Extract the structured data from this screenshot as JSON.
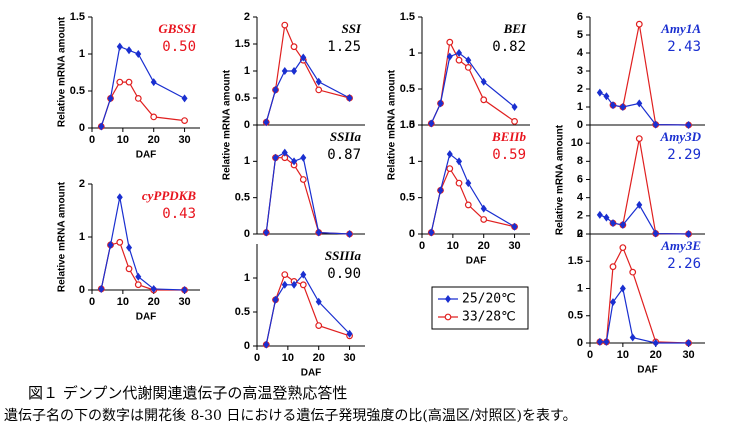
{
  "chart_data": [
    {
      "type": "line",
      "title": "GBSSI",
      "title_color": "#e8141e",
      "ratio": "0.50",
      "ylabel": "Relative mRNA amount",
      "xlabel": "DAF",
      "xlim": [
        0,
        35
      ],
      "xticks": [
        0,
        10,
        20,
        30
      ],
      "ylim": [
        0,
        1.5
      ],
      "yticks": [
        0,
        0.5,
        1,
        1.5
      ],
      "x": [
        3,
        6,
        9,
        12,
        15,
        20,
        30
      ],
      "series": [
        {
          "color": "#1a2fd0",
          "values": [
            0.02,
            0.4,
            1.1,
            1.05,
            1.0,
            0.62,
            0.4
          ]
        },
        {
          "color": "#e02020",
          "values": [
            0.02,
            0.4,
            0.62,
            0.62,
            0.4,
            0.15,
            0.1
          ]
        }
      ]
    },
    {
      "type": "line",
      "title": "cyPPDKB",
      "title_color": "#e8141e",
      "ratio": "0.43",
      "ylabel": "Relative mRNA amount",
      "xlabel": "DAF",
      "xlim": [
        0,
        35
      ],
      "xticks": [
        0,
        10,
        20,
        30
      ],
      "ylim": [
        0,
        2
      ],
      "yticks": [
        0,
        1,
        2
      ],
      "x": [
        3,
        6,
        9,
        12,
        15,
        20,
        30
      ],
      "series": [
        {
          "color": "#1a2fd0",
          "values": [
            0.02,
            0.85,
            1.75,
            0.8,
            0.25,
            0.02,
            0
          ]
        },
        {
          "color": "#e02020",
          "values": [
            0.02,
            0.85,
            0.9,
            0.4,
            0.1,
            0,
            0
          ]
        }
      ]
    },
    {
      "type": "line",
      "title": "SSI",
      "title_color": "#000000",
      "ratio": "1.25",
      "ylabel": "Relative mRNA amount",
      "xlim": [
        0,
        35
      ],
      "ylim": [
        0,
        2
      ],
      "yticks": [
        0,
        0.5,
        1,
        1.5,
        2
      ],
      "x": [
        3,
        6,
        9,
        12,
        15,
        20,
        30
      ],
      "series": [
        {
          "color": "#1a2fd0",
          "values": [
            0.05,
            0.65,
            1.0,
            1.0,
            1.25,
            0.8,
            0.5
          ]
        },
        {
          "color": "#e02020",
          "values": [
            0.05,
            0.65,
            1.85,
            1.45,
            1.2,
            0.65,
            0.5
          ]
        }
      ]
    },
    {
      "type": "line",
      "title": "SSIIa",
      "title_color": "#000000",
      "ratio": "0.87",
      "xlim": [
        0,
        35
      ],
      "ylim": [
        0,
        1.5
      ],
      "yticks": [
        0,
        0.5,
        1
      ],
      "x": [
        3,
        6,
        9,
        12,
        15,
        20,
        30
      ],
      "series": [
        {
          "color": "#1a2fd0",
          "values": [
            0.02,
            1.05,
            1.12,
            1.0,
            1.05,
            0.02,
            0
          ]
        },
        {
          "color": "#e02020",
          "values": [
            0.02,
            1.05,
            1.05,
            0.95,
            0.75,
            0.02,
            0
          ]
        }
      ]
    },
    {
      "type": "line",
      "title": "SSIIIa",
      "title_color": "#000000",
      "ratio": "0.90",
      "xlabel": "DAF",
      "xlim": [
        0,
        35
      ],
      "xticks": [
        0,
        10,
        20,
        30
      ],
      "ylim": [
        0,
        1.5
      ],
      "yticks": [
        0,
        0.5,
        1
      ],
      "x": [
        3,
        6,
        9,
        12,
        15,
        20,
        30
      ],
      "series": [
        {
          "color": "#1a2fd0",
          "values": [
            0.02,
            0.68,
            0.9,
            0.9,
            1.05,
            0.65,
            0.18
          ]
        },
        {
          "color": "#e02020",
          "values": [
            0.02,
            0.68,
            1.05,
            0.95,
            0.9,
            0.3,
            0.15
          ]
        }
      ]
    },
    {
      "type": "line",
      "title": "BEI",
      "title_color": "#000000",
      "ratio": "0.82",
      "xlim": [
        0,
        35
      ],
      "ylim": [
        0,
        1.5
      ],
      "yticks": [
        0,
        0.5,
        1,
        1.5
      ],
      "x": [
        3,
        6,
        9,
        12,
        15,
        20,
        30
      ],
      "series": [
        {
          "color": "#1a2fd0",
          "values": [
            0.02,
            0.3,
            0.95,
            1.0,
            0.9,
            0.6,
            0.25
          ]
        },
        {
          "color": "#e02020",
          "values": [
            0.02,
            0.3,
            1.15,
            0.9,
            0.8,
            0.35,
            0.05
          ]
        }
      ]
    },
    {
      "type": "line",
      "title": "BEIIb",
      "title_color": "#e8141e",
      "ratio": "0.59",
      "ylabel": "Relative mRNA amount",
      "xlabel": "DAF",
      "xlim": [
        0,
        35
      ],
      "xticks": [
        0,
        10,
        20,
        30
      ],
      "ylim": [
        0,
        1.5
      ],
      "yticks": [
        0,
        0.5,
        1,
        1.5
      ],
      "x": [
        3,
        6,
        9,
        12,
        15,
        20,
        30
      ],
      "series": [
        {
          "color": "#1a2fd0",
          "values": [
            0.02,
            0.6,
            1.1,
            1.0,
            0.7,
            0.35,
            0.1
          ]
        },
        {
          "color": "#e02020",
          "values": [
            0.02,
            0.6,
            0.9,
            0.7,
            0.4,
            0.2,
            0.1
          ]
        }
      ]
    },
    {
      "type": "line",
      "title": "Amy1A",
      "title_color": "#1a2fd0",
      "ratio": "2.43",
      "xlim": [
        0,
        35
      ],
      "ylim": [
        0,
        6
      ],
      "yticks": [
        0,
        1,
        2,
        3,
        4,
        5,
        6
      ],
      "x": [
        3,
        5,
        7,
        10,
        15,
        20,
        30
      ],
      "series": [
        {
          "color": "#1a2fd0",
          "values": [
            1.8,
            1.6,
            1.1,
            1.0,
            1.2,
            0.02,
            0
          ]
        },
        {
          "color": "#e02020",
          "values": [
            null,
            null,
            1.1,
            1.0,
            5.6,
            0.02,
            0
          ]
        }
      ]
    },
    {
      "type": "line",
      "title": "Amy3D",
      "title_color": "#1a2fd0",
      "ratio": "2.29",
      "ylabel": "Relative mRNA amount",
      "xlim": [
        0,
        35
      ],
      "ylim": [
        0,
        12
      ],
      "yticks": [
        0,
        2,
        4,
        6,
        8,
        10
      ],
      "x": [
        3,
        5,
        7,
        10,
        15,
        20,
        30
      ],
      "series": [
        {
          "color": "#1a2fd0",
          "values": [
            2.1,
            1.8,
            1.2,
            1.0,
            3.2,
            0.05,
            0
          ]
        },
        {
          "color": "#e02020",
          "values": [
            null,
            null,
            1.2,
            1.0,
            10.5,
            0.05,
            0
          ]
        }
      ]
    },
    {
      "type": "line",
      "title": "Amy3E",
      "title_color": "#1a2fd0",
      "ratio": "2.26",
      "xlabel": "DAF",
      "xlim": [
        0,
        35
      ],
      "xticks": [
        0,
        10,
        20,
        30
      ],
      "ylim": [
        0,
        2
      ],
      "yticks": [
        0,
        0.5,
        1,
        1.5,
        2
      ],
      "x": [
        3,
        5,
        7,
        10,
        13,
        20,
        30
      ],
      "series": [
        {
          "color": "#1a2fd0",
          "values": [
            0.02,
            0.02,
            0.75,
            1.0,
            0.1,
            0,
            0
          ]
        },
        {
          "color": "#e02020",
          "values": [
            0.02,
            0.02,
            1.4,
            1.75,
            1.3,
            0.02,
            0
          ]
        }
      ]
    }
  ],
  "legend": [
    {
      "name": "25/20℃",
      "color": "#1a2fd0",
      "marker": "diamond"
    },
    {
      "name": "33/28℃",
      "color": "#e02020",
      "marker": "circle"
    }
  ],
  "caption": {
    "title": "図１ デンプン代謝関連遺伝子の高温登熟応答性",
    "note": "遺伝子名の下の数字は開花後 8-30 日における遺伝子発現強度の比(高温区/対照区)を表す。"
  }
}
